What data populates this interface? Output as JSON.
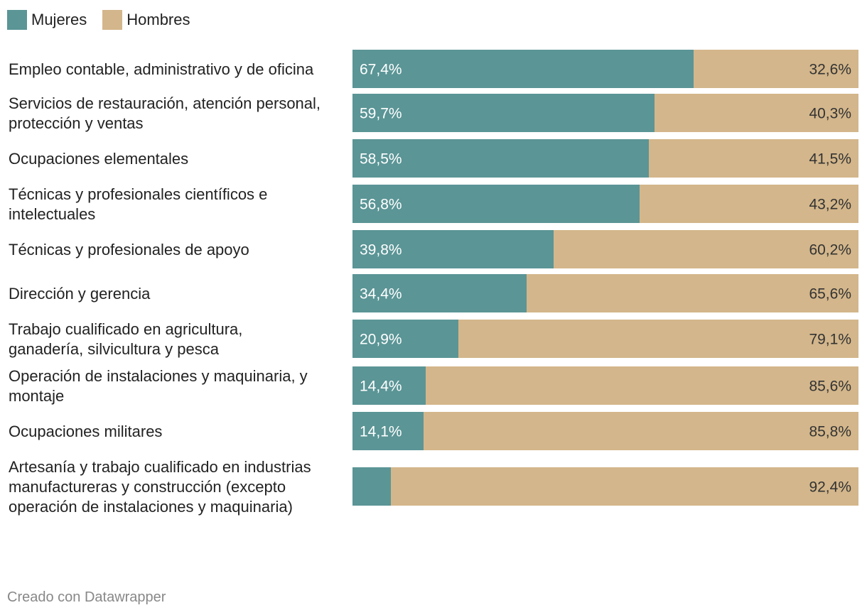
{
  "chart_data": {
    "type": "bar",
    "stacked": true,
    "orientation": "horizontal",
    "normalized_percent": true,
    "legend": [
      {
        "name": "Mujeres",
        "color": "#5b9596"
      },
      {
        "name": "Hombres",
        "color": "#d3b68b"
      }
    ],
    "categories": [
      [
        "Empleo contable, administrativo y de oficina"
      ],
      [
        "Servicios de restauración, atención personal,",
        "protección y ventas"
      ],
      [
        "Ocupaciones elementales"
      ],
      [
        "Técnicas y profesionales científicos e",
        "intelectuales"
      ],
      [
        "Técnicas y profesionales de apoyo"
      ],
      [
        "Dirección y gerencia"
      ],
      [
        "Trabajo cualificado en agricultura,",
        "ganadería, silvicultura y pesca"
      ],
      [
        "Operación de instalaciones y maquinaria, y",
        "montaje"
      ],
      [
        "Ocupaciones militares"
      ],
      [
        "Artesanía y trabajo cualificado en industrias",
        "manufactureras y construcción (excepto",
        "operación de instalaciones y maquinaria)"
      ]
    ],
    "series": [
      {
        "name": "Mujeres",
        "values": [
          67.4,
          59.7,
          58.5,
          56.8,
          39.8,
          34.4,
          20.9,
          14.4,
          14.1,
          7.6
        ],
        "labels": [
          "67,4%",
          "59,7%",
          "58,5%",
          "56,8%",
          "39,8%",
          "34,4%",
          "20,9%",
          "14,4%",
          "14,1%",
          ""
        ]
      },
      {
        "name": "Hombres",
        "values": [
          32.6,
          40.3,
          41.5,
          43.2,
          60.2,
          65.6,
          79.1,
          85.6,
          85.8,
          92.4
        ],
        "labels": [
          "32,6%",
          "40,3%",
          "41,5%",
          "43,2%",
          "60,2%",
          "65,6%",
          "79,1%",
          "85,6%",
          "85,8%",
          "92,4%"
        ]
      }
    ],
    "xlim": [
      0,
      100
    ]
  },
  "footer": "Creado con Datawrapper"
}
